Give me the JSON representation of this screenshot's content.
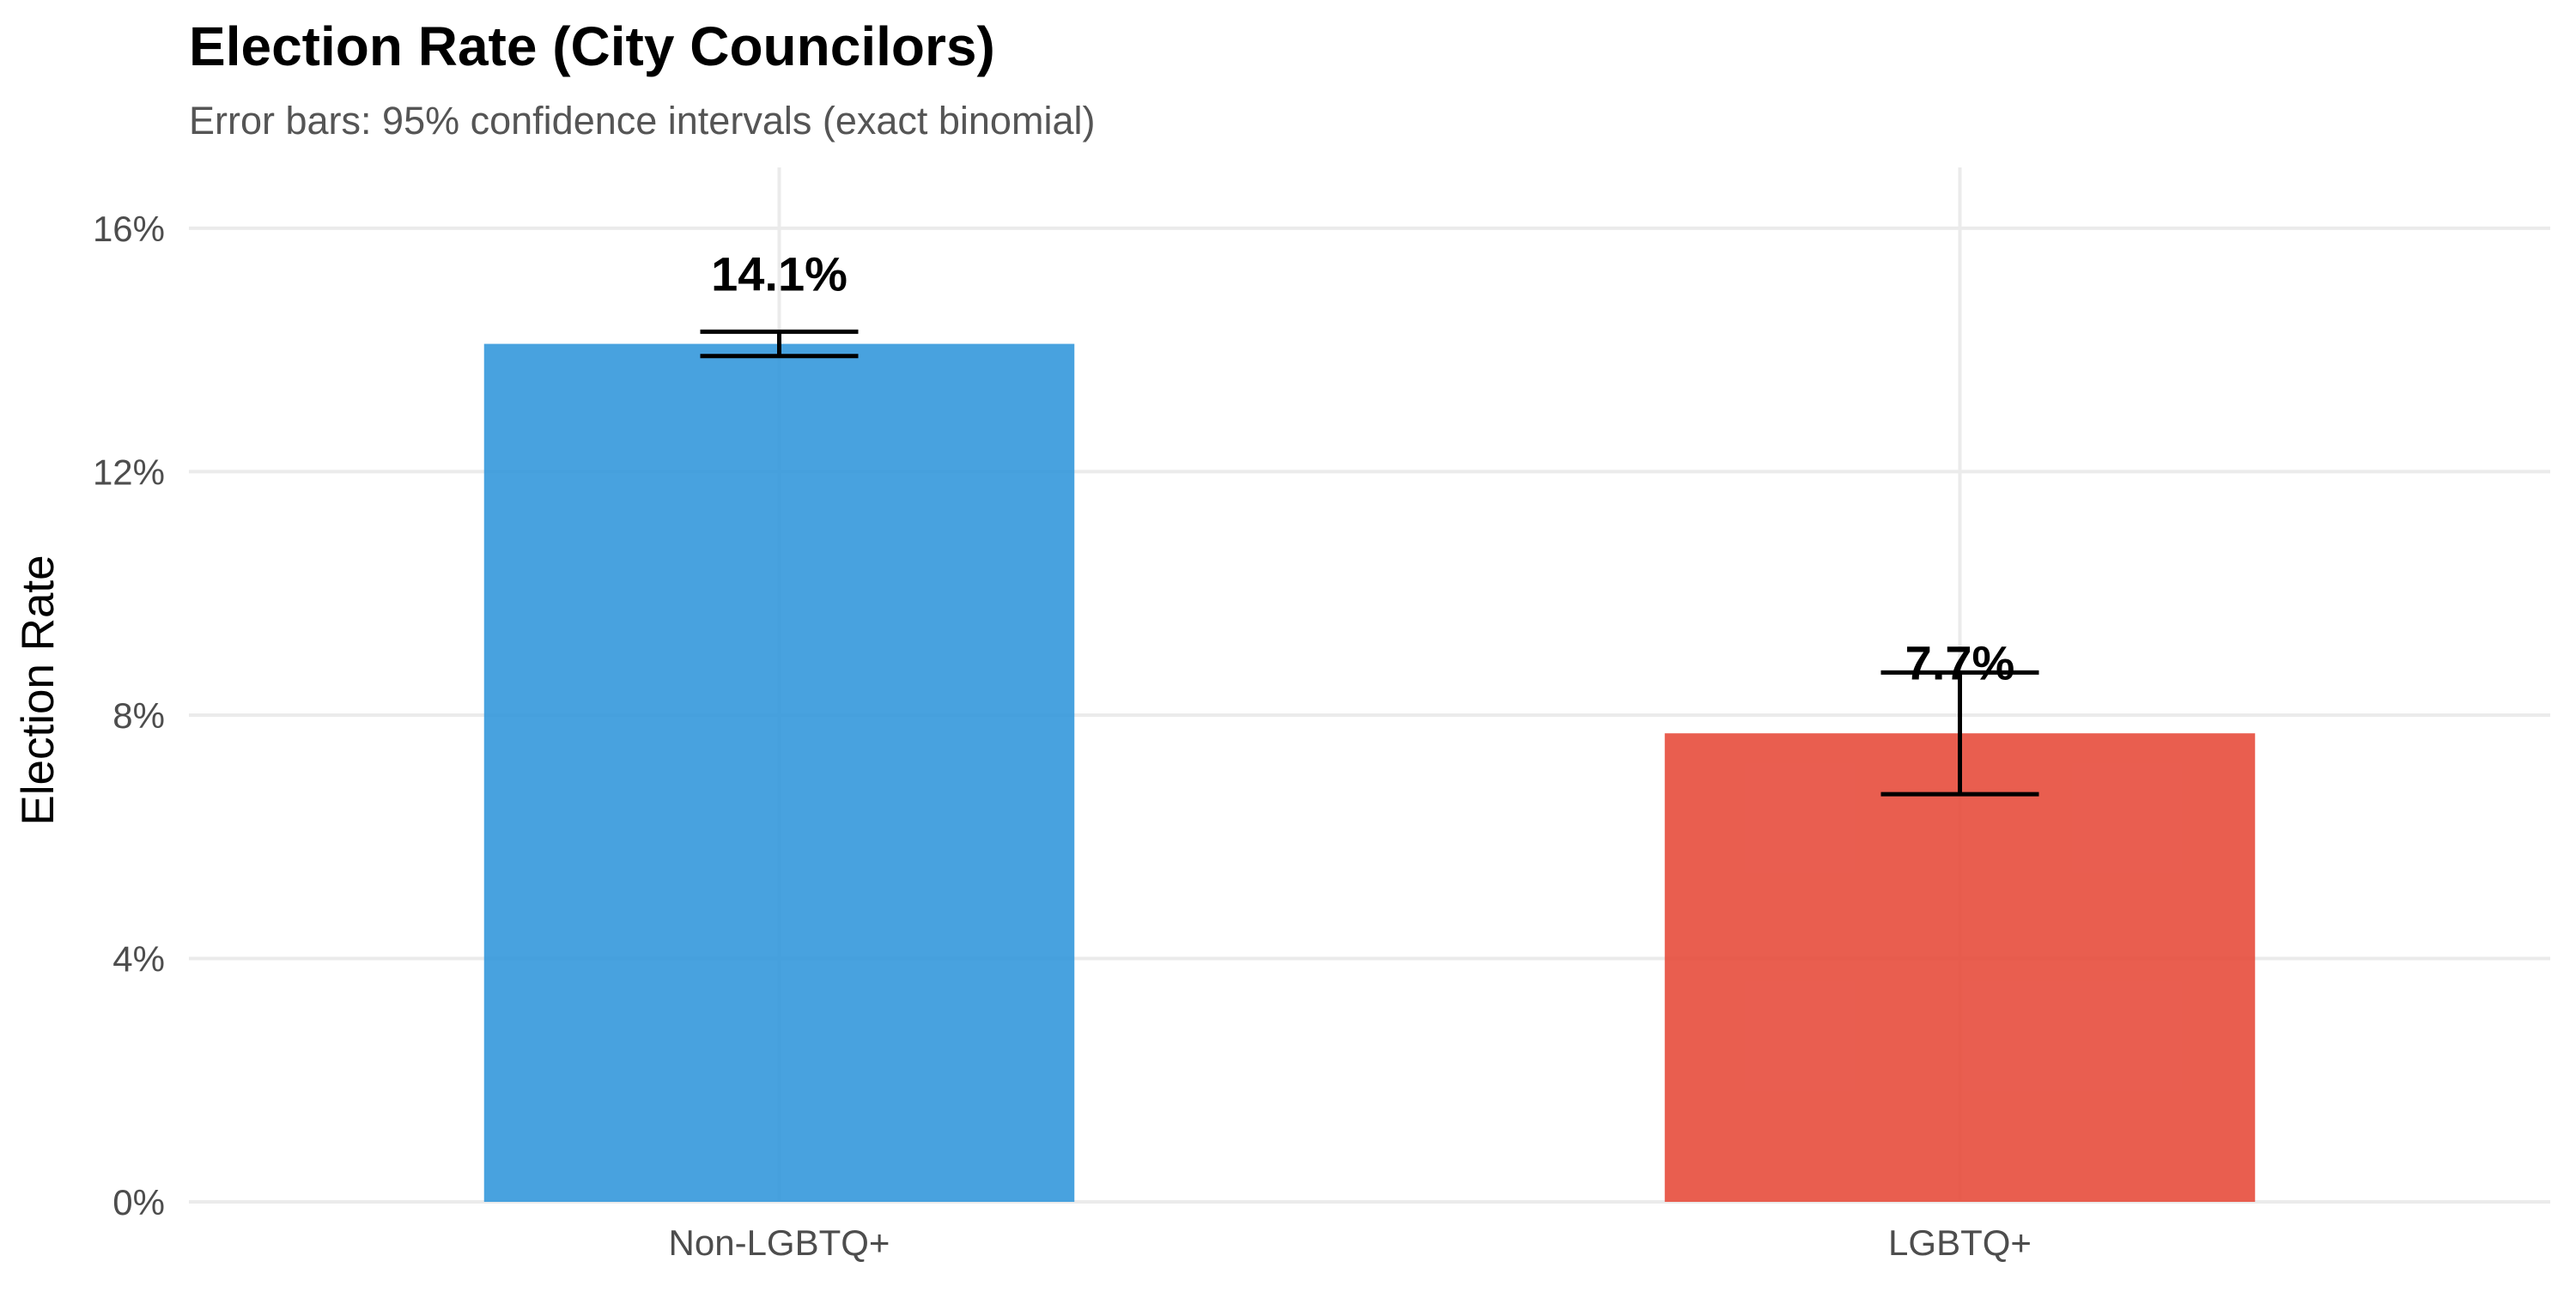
{
  "chart_data": {
    "type": "bar",
    "title": "Election Rate (City Councilors)",
    "subtitle": "Error bars: 95% confidence intervals (exact binomial)",
    "xlabel": "",
    "ylabel": "Election Rate",
    "categories": [
      "Non-LGBTQ+",
      "LGBTQ+"
    ],
    "values": [
      14.1,
      7.7
    ],
    "value_labels": [
      "14.1%",
      "7.7%"
    ],
    "ci_low": [
      13.9,
      6.7
    ],
    "ci_high": [
      14.3,
      8.7
    ],
    "colors": [
      "#3498db",
      "#e74c3c"
    ],
    "ylim": [
      0,
      17
    ],
    "yticks": [
      0,
      4,
      8,
      12,
      16
    ],
    "ytick_labels": [
      "0%",
      "4%",
      "8%",
      "12%",
      "16%"
    ],
    "grid": true,
    "legend": "none"
  }
}
